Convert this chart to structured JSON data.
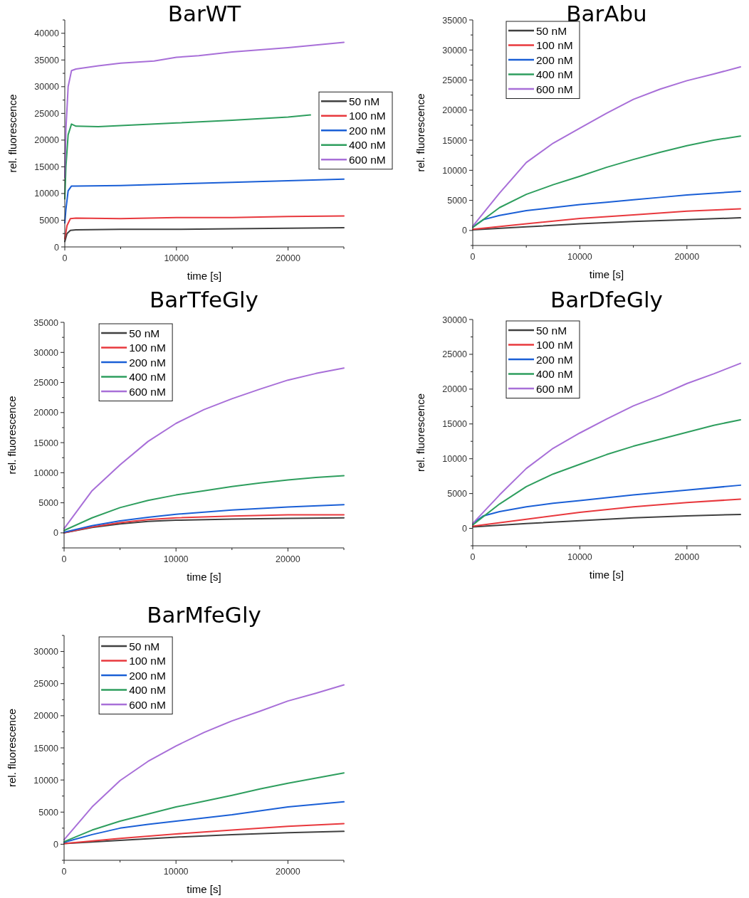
{
  "chart_data": [
    {
      "type": "line",
      "title": "BarWT",
      "xlabel": "time [s]",
      "ylabel": "rel. fluorescence",
      "legend": "right",
      "xlim": [
        0,
        25000
      ],
      "ylim": [
        0,
        42500
      ],
      "xticks": [
        0,
        {
          "value": 5000,
          "label": null
        },
        10000,
        {
          "value": 15000,
          "label": null
        },
        20000,
        {
          "value": 25000,
          "label": null
        }
      ],
      "yticks": [
        0,
        {
          "value": 2500,
          "label": null
        },
        5000,
        {
          "value": 7500,
          "label": null
        },
        10000,
        {
          "value": 12500,
          "label": null
        },
        15000,
        {
          "value": 17500,
          "label": null
        },
        20000,
        {
          "value": 22500,
          "label": null
        },
        25000,
        {
          "value": 27500,
          "label": null
        },
        30000,
        {
          "value": 32500,
          "label": null
        },
        35000,
        {
          "value": 37500,
          "label": null
        },
        40000,
        {
          "value": 42500,
          "label": null
        }
      ],
      "series": [
        {
          "name": "50 nM",
          "color": "#404040",
          "x": [
            0,
            200,
            500,
            1000,
            5000,
            10000,
            15000,
            20000,
            25000
          ],
          "values": [
            1000,
            2500,
            3100,
            3200,
            3300,
            3300,
            3400,
            3500,
            3600
          ]
        },
        {
          "name": "100 nM",
          "color": "#e8383d",
          "x": [
            0,
            200,
            500,
            1000,
            5000,
            10000,
            15000,
            20000,
            25000
          ],
          "values": [
            1500,
            4000,
            5300,
            5400,
            5300,
            5500,
            5500,
            5700,
            5800
          ]
        },
        {
          "name": "200 nM",
          "color": "#1a5fd6",
          "x": [
            0,
            100,
            300,
            600,
            1000,
            5000,
            10000,
            15000,
            20000,
            25000
          ],
          "values": [
            4500,
            7000,
            10500,
            11400,
            11400,
            11500,
            11800,
            12100,
            12400,
            12700
          ]
        },
        {
          "name": "400 nM",
          "color": "#2e9e5e",
          "x": [
            0,
            100,
            300,
            600,
            1000,
            3000,
            5000,
            10000,
            15000,
            20000,
            22000
          ],
          "values": [
            9000,
            15000,
            21000,
            23000,
            22600,
            22500,
            22700,
            23200,
            23700,
            24300,
            24700
          ]
        },
        {
          "name": "600 nM",
          "color": "#a86fd8",
          "x": [
            0,
            100,
            300,
            600,
            1000,
            3000,
            5000,
            8000,
            10000,
            12000,
            15000,
            20000,
            25000
          ],
          "values": [
            13000,
            22000,
            30000,
            33000,
            33300,
            33900,
            34400,
            34800,
            35500,
            35800,
            36500,
            37300,
            38300
          ]
        }
      ]
    },
    {
      "type": "line",
      "title": "BarAbu",
      "xlabel": "time [s]",
      "ylabel": "rel. fluorescence",
      "legend": "top left",
      "xlim": [
        0,
        25000
      ],
      "ylim": [
        -2500,
        35000
      ],
      "xticks": [
        0,
        {
          "value": 5000,
          "label": null
        },
        10000,
        {
          "value": 15000,
          "label": null
        },
        20000,
        {
          "value": 25000,
          "label": null
        }
      ],
      "yticks": [
        {
          "value": -2500,
          "label": null
        },
        0,
        {
          "value": 2500,
          "label": null
        },
        5000,
        {
          "value": 7500,
          "label": null
        },
        10000,
        {
          "value": 12500,
          "label": null
        },
        15000,
        {
          "value": 17500,
          "label": null
        },
        20000,
        {
          "value": 22500,
          "label": null
        },
        25000,
        {
          "value": 27500,
          "label": null
        },
        30000,
        {
          "value": 32500,
          "label": null
        },
        35000
      ],
      "series": [
        {
          "name": "50 nM",
          "color": "#404040",
          "x": [
            0,
            5000,
            10000,
            15000,
            20000,
            25000
          ],
          "values": [
            100,
            600,
            1100,
            1500,
            1800,
            2100
          ]
        },
        {
          "name": "100 nM",
          "color": "#e8383d",
          "x": [
            0,
            5000,
            10000,
            15000,
            20000,
            25000
          ],
          "values": [
            200,
            1100,
            2000,
            2600,
            3200,
            3600
          ]
        },
        {
          "name": "200 nM",
          "color": "#1a5fd6",
          "x": [
            0,
            1000,
            2500,
            5000,
            7500,
            10000,
            12500,
            15000,
            17500,
            20000,
            22500,
            25000
          ],
          "values": [
            600,
            1800,
            2500,
            3300,
            3800,
            4300,
            4700,
            5100,
            5500,
            5900,
            6200,
            6500
          ]
        },
        {
          "name": "400 nM",
          "color": "#2e9e5e",
          "x": [
            0,
            2500,
            5000,
            7500,
            10000,
            12500,
            15000,
            17500,
            20000,
            22500,
            25000
          ],
          "values": [
            500,
            3800,
            6000,
            7600,
            9000,
            10500,
            11800,
            13000,
            14100,
            15000,
            15700
          ]
        },
        {
          "name": "600 nM",
          "color": "#a86fd8",
          "x": [
            0,
            2500,
            5000,
            7500,
            10000,
            12500,
            15000,
            17500,
            20000,
            22500,
            25000
          ],
          "values": [
            700,
            6200,
            11300,
            14500,
            17000,
            19500,
            21800,
            23500,
            24900,
            26000,
            27200
          ]
        }
      ]
    },
    {
      "type": "line",
      "title": "BarTfeGly",
      "xlabel": "time [s]",
      "ylabel": "rel. fluorescence",
      "legend": "top left",
      "xlim": [
        0,
        25000
      ],
      "ylim": [
        -2500,
        35000
      ],
      "xticks": [
        0,
        {
          "value": 5000,
          "label": null
        },
        10000,
        {
          "value": 15000,
          "label": null
        },
        20000,
        {
          "value": 25000,
          "label": null
        }
      ],
      "yticks": [
        {
          "value": -2500,
          "label": null
        },
        0,
        {
          "value": 2500,
          "label": null
        },
        5000,
        {
          "value": 7500,
          "label": null
        },
        10000,
        {
          "value": 12500,
          "label": null
        },
        15000,
        {
          "value": 17500,
          "label": null
        },
        20000,
        {
          "value": 22500,
          "label": null
        },
        25000,
        {
          "value": 27500,
          "label": null
        },
        30000,
        {
          "value": 32500,
          "label": null
        },
        35000
      ],
      "series": [
        {
          "name": "50 nM",
          "color": "#404040",
          "x": [
            0,
            2500,
            5000,
            7500,
            10000,
            15000,
            20000,
            25000
          ],
          "values": [
            0,
            900,
            1500,
            1900,
            2100,
            2300,
            2400,
            2500
          ]
        },
        {
          "name": "100 nM",
          "color": "#e8383d",
          "x": [
            0,
            2500,
            5000,
            7500,
            10000,
            15000,
            20000,
            25000
          ],
          "values": [
            0,
            1000,
            1700,
            2200,
            2500,
            2800,
            3000,
            3000
          ]
        },
        {
          "name": "200 nM",
          "color": "#1a5fd6",
          "x": [
            0,
            2500,
            5000,
            7500,
            10000,
            15000,
            20000,
            25000
          ],
          "values": [
            100,
            1200,
            2000,
            2600,
            3100,
            3800,
            4300,
            4700
          ]
        },
        {
          "name": "400 nM",
          "color": "#2e9e5e",
          "x": [
            0,
            2500,
            5000,
            7500,
            10000,
            12500,
            15000,
            17500,
            20000,
            22500,
            25000
          ],
          "values": [
            400,
            2500,
            4200,
            5400,
            6300,
            7000,
            7700,
            8300,
            8800,
            9200,
            9500
          ]
        },
        {
          "name": "600 nM",
          "color": "#a86fd8",
          "x": [
            0,
            2500,
            5000,
            7500,
            10000,
            12500,
            15000,
            17500,
            20000,
            22500,
            25000
          ],
          "values": [
            700,
            7000,
            11300,
            15200,
            18200,
            20500,
            22300,
            23900,
            25400,
            26500,
            27400
          ]
        }
      ]
    },
    {
      "type": "line",
      "title": "BarDfeGly",
      "xlabel": "time [s]",
      "ylabel": "rel. fluorescence",
      "legend": "top left",
      "xlim": [
        0,
        25000
      ],
      "ylim": [
        -2500,
        30000
      ],
      "xticks": [
        0,
        {
          "value": 5000,
          "label": null
        },
        10000,
        {
          "value": 15000,
          "label": null
        },
        20000,
        {
          "value": 25000,
          "label": null
        }
      ],
      "yticks": [
        {
          "value": -2500,
          "label": null
        },
        0,
        {
          "value": 2500,
          "label": null
        },
        5000,
        {
          "value": 7500,
          "label": null
        },
        10000,
        {
          "value": 12500,
          "label": null
        },
        15000,
        {
          "value": 17500,
          "label": null
        },
        20000,
        {
          "value": 22500,
          "label": null
        },
        25000,
        {
          "value": 27500,
          "label": null
        },
        30000
      ],
      "series": [
        {
          "name": "50 nM",
          "color": "#404040",
          "x": [
            0,
            5000,
            10000,
            15000,
            20000,
            25000
          ],
          "values": [
            200,
            700,
            1100,
            1500,
            1800,
            2000
          ]
        },
        {
          "name": "100 nM",
          "color": "#e8383d",
          "x": [
            0,
            5000,
            10000,
            15000,
            20000,
            25000
          ],
          "values": [
            300,
            1300,
            2300,
            3100,
            3700,
            4200
          ]
        },
        {
          "name": "200 nM",
          "color": "#1a5fd6",
          "x": [
            0,
            1000,
            2500,
            5000,
            7500,
            10000,
            15000,
            20000,
            25000
          ],
          "values": [
            700,
            1800,
            2400,
            3100,
            3600,
            4000,
            4800,
            5500,
            6200
          ]
        },
        {
          "name": "400 nM",
          "color": "#2e9e5e",
          "x": [
            0,
            2500,
            5000,
            7500,
            10000,
            12500,
            15000,
            17500,
            20000,
            22500,
            25000
          ],
          "values": [
            500,
            3500,
            6000,
            7800,
            9200,
            10600,
            11800,
            12800,
            13800,
            14800,
            15600
          ]
        },
        {
          "name": "600 nM",
          "color": "#a86fd8",
          "x": [
            0,
            2500,
            5000,
            7500,
            10000,
            12500,
            15000,
            17500,
            20000,
            22500,
            25000
          ],
          "values": [
            700,
            4800,
            8600,
            11500,
            13700,
            15700,
            17600,
            19100,
            20800,
            22200,
            23700
          ]
        }
      ]
    },
    {
      "type": "line",
      "title": "BarMfeGly",
      "xlabel": "time [s]",
      "ylabel": "rel. fluorescence",
      "legend": "top left",
      "xlim": [
        0,
        25000
      ],
      "ylim": [
        -2500,
        32500
      ],
      "xticks": [
        0,
        {
          "value": 5000,
          "label": null
        },
        10000,
        {
          "value": 15000,
          "label": null
        },
        20000,
        {
          "value": 25000,
          "label": null
        }
      ],
      "yticks": [
        {
          "value": -2500,
          "label": null
        },
        0,
        {
          "value": 2500,
          "label": null
        },
        5000,
        {
          "value": 7500,
          "label": null
        },
        10000,
        {
          "value": 12500,
          "label": null
        },
        15000,
        {
          "value": 17500,
          "label": null
        },
        20000,
        {
          "value": 22500,
          "label": null
        },
        25000,
        {
          "value": 27500,
          "label": null
        },
        30000,
        {
          "value": 32500,
          "label": null
        }
      ],
      "series": [
        {
          "name": "50 nM",
          "color": "#404040",
          "x": [
            0,
            5000,
            10000,
            15000,
            20000,
            25000
          ],
          "values": [
            100,
            600,
            1100,
            1500,
            1800,
            2000
          ]
        },
        {
          "name": "100 nM",
          "color": "#e8383d",
          "x": [
            0,
            5000,
            10000,
            15000,
            20000,
            25000
          ],
          "values": [
            100,
            900,
            1600,
            2200,
            2800,
            3200
          ]
        },
        {
          "name": "200 nM",
          "color": "#1a5fd6",
          "x": [
            0,
            2500,
            5000,
            7500,
            10000,
            15000,
            20000,
            25000
          ],
          "values": [
            300,
            1500,
            2500,
            3100,
            3600,
            4600,
            5800,
            6600
          ]
        },
        {
          "name": "400 nM",
          "color": "#2e9e5e",
          "x": [
            0,
            2500,
            5000,
            7500,
            10000,
            12500,
            15000,
            17500,
            20000,
            22500,
            25000
          ],
          "values": [
            400,
            2200,
            3600,
            4700,
            5800,
            6700,
            7600,
            8600,
            9500,
            10300,
            11100
          ]
        },
        {
          "name": "600 nM",
          "color": "#a86fd8",
          "x": [
            0,
            2500,
            5000,
            7500,
            10000,
            12500,
            15000,
            17500,
            20000,
            22500,
            25000
          ],
          "values": [
            700,
            5800,
            9900,
            12900,
            15300,
            17400,
            19200,
            20700,
            22300,
            23500,
            24800
          ]
        }
      ]
    }
  ]
}
